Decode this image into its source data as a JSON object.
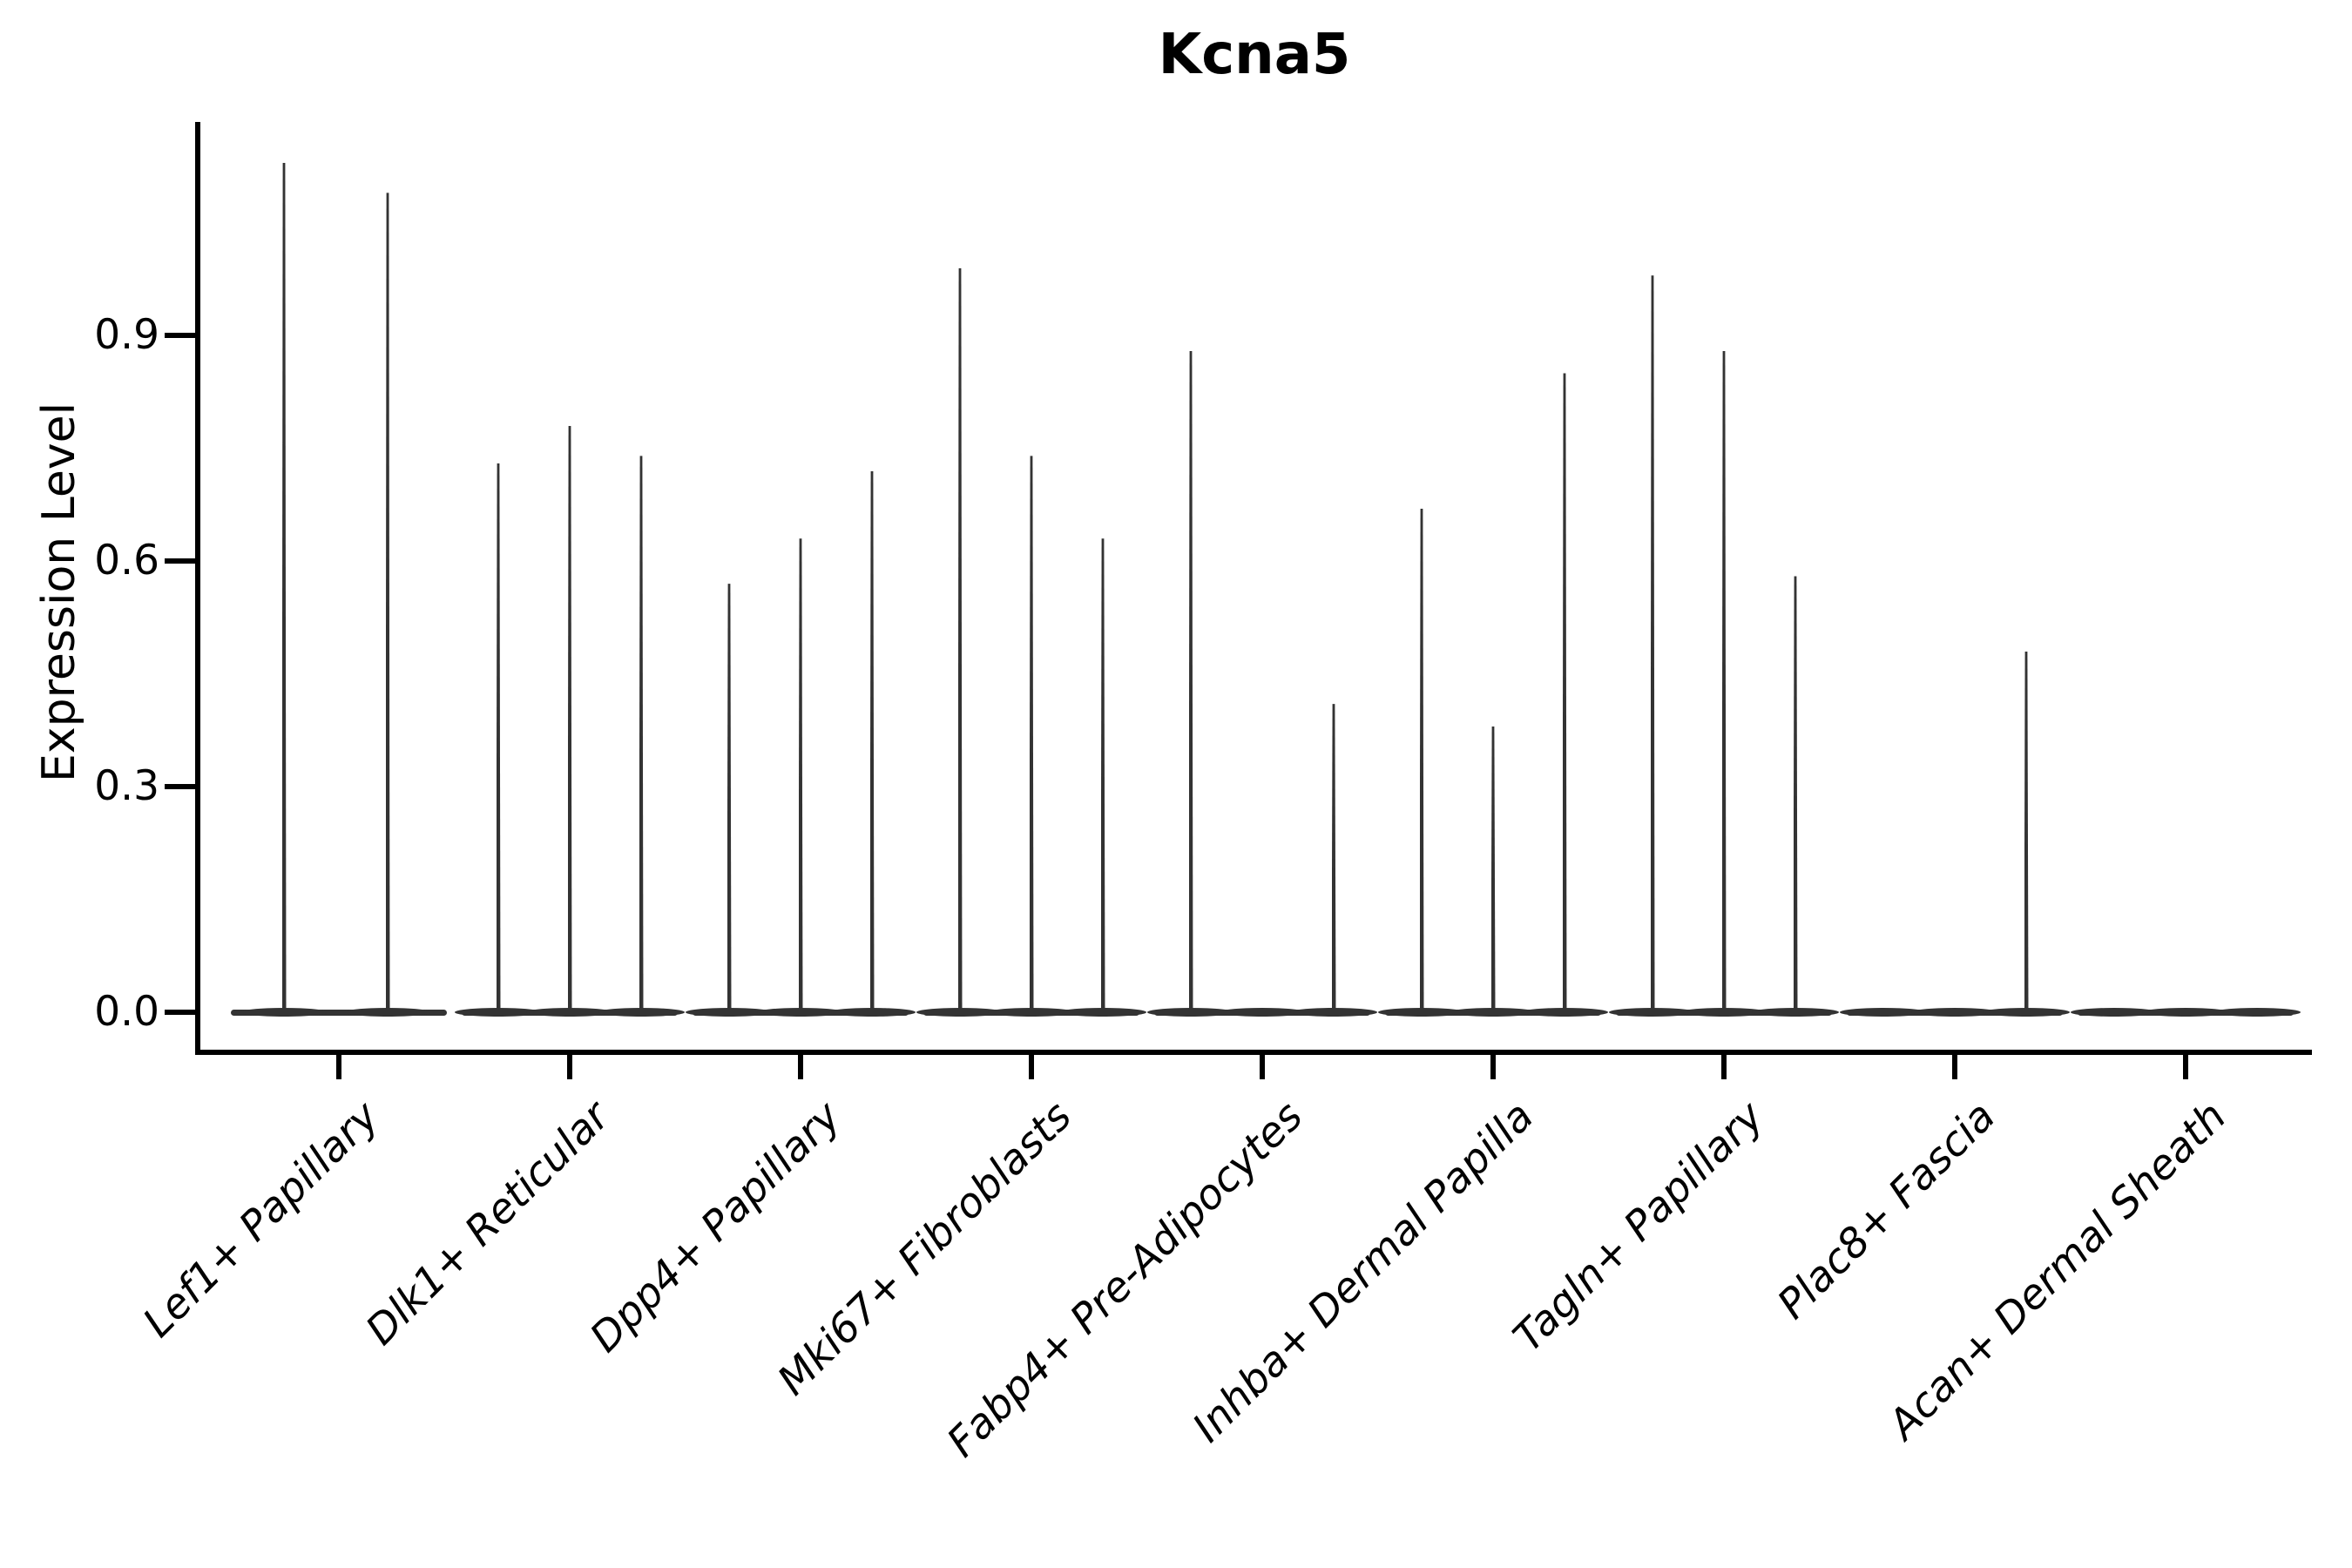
{
  "title": "Kcna5",
  "chart_data": {
    "type": "violin",
    "title": "Kcna5",
    "xlabel": "",
    "ylabel": "Expression Level",
    "ylim": [
      0,
      1.18
    ],
    "grid": false,
    "legend": null,
    "ytick_labels": [
      "0.0",
      "0.3",
      "0.6",
      "0.9"
    ],
    "ytick_values": [
      0.0,
      0.3,
      0.6,
      0.9
    ],
    "categories": [
      "Lef1+ Papillary",
      "Dlk1+ Reticular",
      "Dpp4+ Papillary",
      "Mki67+ Fibroblasts",
      "Fabp4+ Pre-Adipocytes",
      "Inhba+ Dermal Papilla",
      "Tagln+ Papillary",
      "Plac8+ Fascia",
      "Acan+ Dermal Sheath"
    ],
    "series": [
      {
        "category": "Lef1+ Papillary",
        "violins": [
          {
            "dx": -63,
            "peak": 1.13
          },
          {
            "dx": 56,
            "peak": 1.09
          }
        ]
      },
      {
        "category": "Dlk1+ Reticular",
        "violins": [
          {
            "dx": -82,
            "peak": 0.73
          },
          {
            "dx": 0,
            "peak": 0.78
          },
          {
            "dx": 82,
            "peak": 0.74
          }
        ]
      },
      {
        "category": "Dpp4+ Papillary",
        "violins": [
          {
            "dx": -82,
            "peak": 0.57
          },
          {
            "dx": 0,
            "peak": 0.63
          },
          {
            "dx": 82,
            "peak": 0.72
          }
        ]
      },
      {
        "category": "Mki67+ Fibroblasts",
        "violins": [
          {
            "dx": -82,
            "peak": 0.99
          },
          {
            "dx": 0,
            "peak": 0.74
          },
          {
            "dx": 82,
            "peak": 0.63
          }
        ]
      },
      {
        "category": "Fabp4+ Pre-Adipocytes",
        "violins": [
          {
            "dx": -82,
            "peak": 0.88
          },
          {
            "dx": 0,
            "peak": 0.0
          },
          {
            "dx": 82,
            "peak": 0.41
          }
        ]
      },
      {
        "category": "Inhba+ Dermal Papilla",
        "violins": [
          {
            "dx": -82,
            "peak": 0.67
          },
          {
            "dx": 0,
            "peak": 0.38
          },
          {
            "dx": 82,
            "peak": 0.85
          }
        ]
      },
      {
        "category": "Tagln+ Papillary",
        "violins": [
          {
            "dx": -82,
            "peak": 0.98
          },
          {
            "dx": 0,
            "peak": 0.88
          },
          {
            "dx": 82,
            "peak": 0.58
          }
        ]
      },
      {
        "category": "Plac8+ Fascia",
        "violins": [
          {
            "dx": -82,
            "peak": 0.0
          },
          {
            "dx": 0,
            "peak": 0.0
          },
          {
            "dx": 82,
            "peak": 0.48
          }
        ]
      },
      {
        "category": "Acan+ Dermal Sheath",
        "violins": [
          {
            "dx": -82,
            "peak": 0.0
          },
          {
            "dx": 0,
            "peak": 0.0
          },
          {
            "dx": 82,
            "peak": 0.0
          }
        ]
      }
    ],
    "colors": {
      "violin": "#333333",
      "axis": "#000000",
      "background": "#ffffff"
    }
  }
}
